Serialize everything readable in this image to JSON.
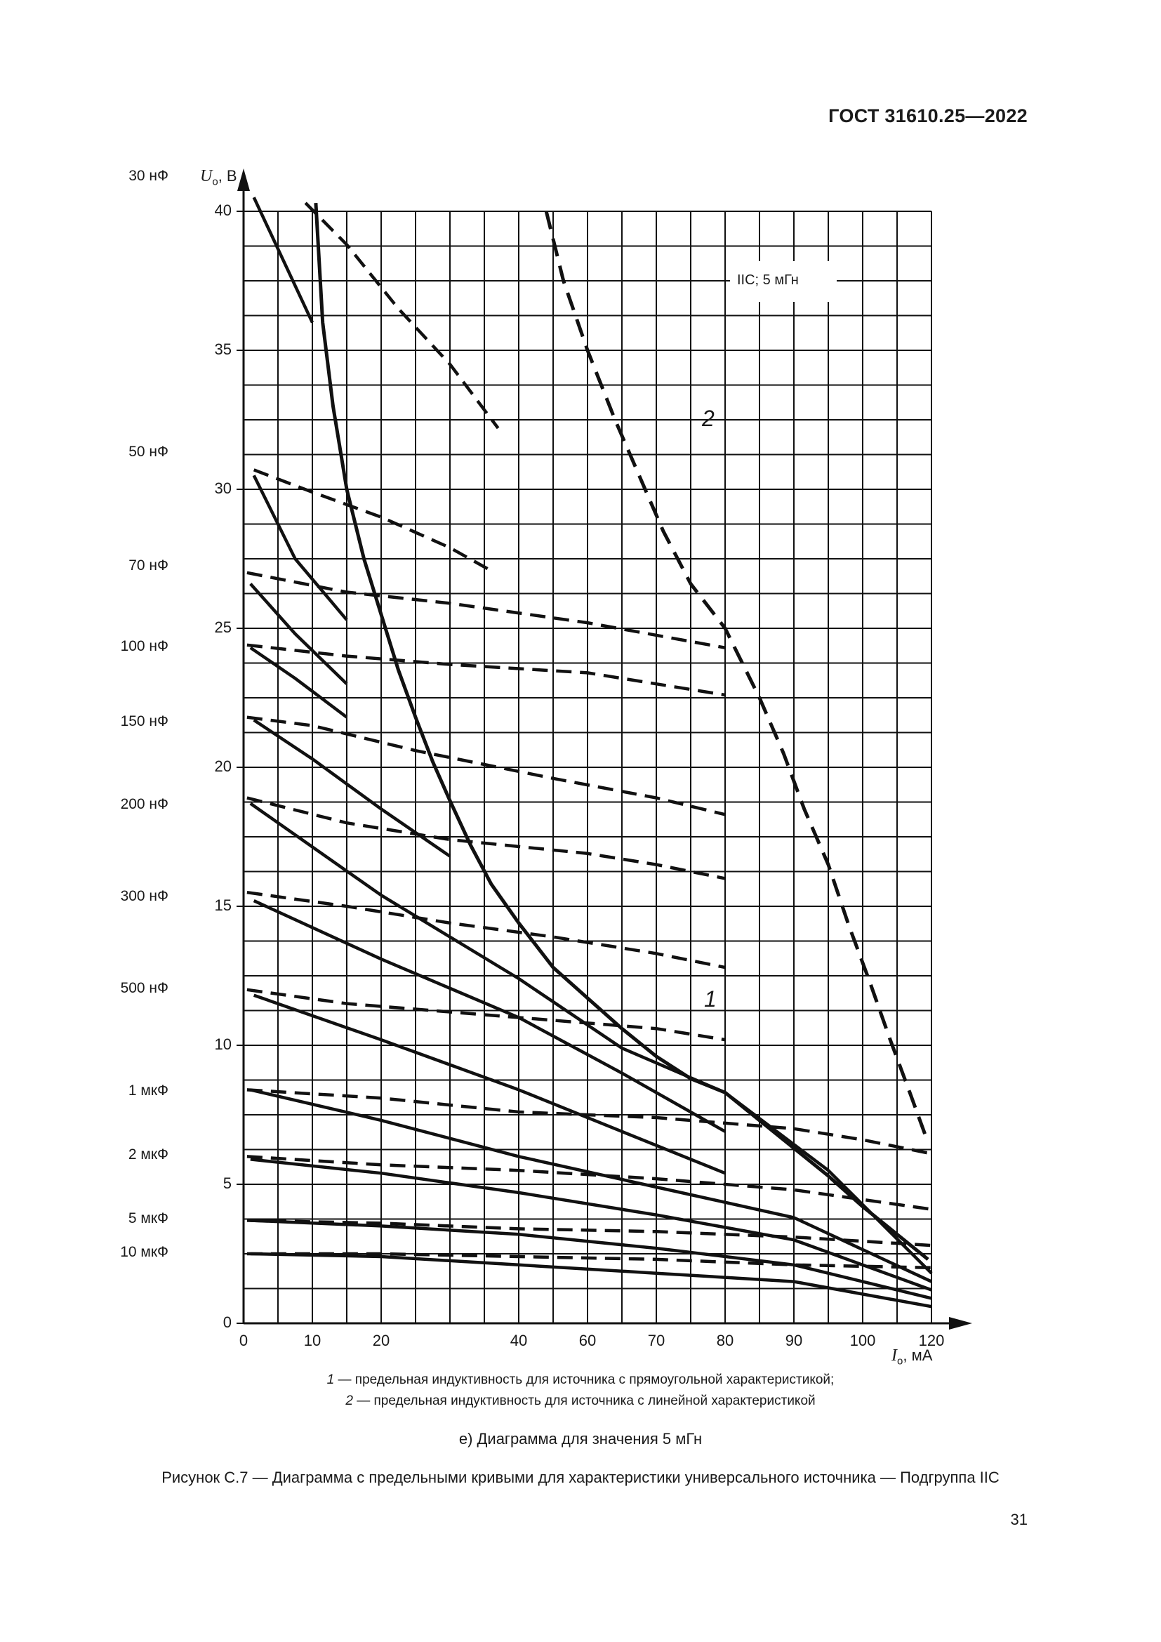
{
  "header": {
    "standard": "ГОСТ 31610.25—2022"
  },
  "figure": {
    "box_label": "IIC; 5 мГн",
    "curve_label_1": "1",
    "curve_label_2": "2",
    "y_axis_label_main": "U",
    "y_axis_label_sub": "о",
    "y_axis_label_unit": ", В",
    "x_axis_label_main": "I",
    "x_axis_label_sub": "о",
    "x_axis_label_unit": ", мА",
    "legend": [
      {
        "num": "1",
        "text": " — предельная индуктивность для источника с прямоугольной характеристикой;"
      },
      {
        "num": "2",
        "text": " — предельная индуктивность для источника с линейной характеристикой"
      }
    ],
    "subcaption": "е) Диаграмма для значения 5 мГн",
    "caption": "Рисунок С.7 — Диаграмма с предельными кривыми для характеристики универсального источника — Подгруппа IIC"
  },
  "page_number": "31",
  "chart_data": {
    "type": "line",
    "title": "IIC; 5 мГн",
    "xlabel": "Iо, мА",
    "ylabel": "Uо, В",
    "xlim": [
      0,
      120
    ],
    "ylim": [
      0,
      40
    ],
    "x_scale_note": "non-uniform: 20 equal grid columns; tick labels at columns 0,2,4,8,10,12,14,16,18,20",
    "x_ticks": [
      {
        "label": "0",
        "col": 0
      },
      {
        "label": "10",
        "col": 2
      },
      {
        "label": "20",
        "col": 4
      },
      {
        "label": "40",
        "col": 8
      },
      {
        "label": "60",
        "col": 10
      },
      {
        "label": "70",
        "col": 12
      },
      {
        "label": "80",
        "col": 14
      },
      {
        "label": "90",
        "col": 16
      },
      {
        "label": "100",
        "col": 18
      },
      {
        "label": "120",
        "col": 20
      }
    ],
    "y_ticks": [
      "0",
      "5",
      "10",
      "15",
      "20",
      "25",
      "30",
      "35",
      "40"
    ],
    "capacitance_labels": [
      {
        "label": "30 нФ",
        "v": 41.2
      },
      {
        "label": "50 нФ",
        "v": 31.3
      },
      {
        "label": "70 нФ",
        "v": 27.2
      },
      {
        "label": "100 нФ",
        "v": 24.3
      },
      {
        "label": "150 нФ",
        "v": 21.6
      },
      {
        "label": "200 нФ",
        "v": 18.6
      },
      {
        "label": "300 нФ",
        "v": 15.3
      },
      {
        "label": "500 нФ",
        "v": 12.0
      },
      {
        "label": "1 мкФ",
        "v": 8.3
      },
      {
        "label": "2 мкФ",
        "v": 6.0
      },
      {
        "label": "5 мкФ",
        "v": 3.7
      },
      {
        "label": "10 мкФ",
        "v": 2.5
      }
    ],
    "grid": true,
    "series": [
      {
        "name": "Curve 1 (rectangular source limit)",
        "style": "solid-bold",
        "points_col_v": [
          [
            2.1,
            40.3
          ],
          [
            2.3,
            36
          ],
          [
            2.6,
            33
          ],
          [
            3,
            30
          ],
          [
            3.5,
            27.5
          ],
          [
            4,
            25.5
          ],
          [
            4.5,
            23.5
          ],
          [
            5,
            21.8
          ],
          [
            5.5,
            20.2
          ],
          [
            6,
            18.8
          ],
          [
            6.6,
            17.2
          ],
          [
            7.2,
            15.8
          ],
          [
            8,
            14.4
          ],
          [
            9,
            12.8
          ],
          [
            10,
            11.7
          ],
          [
            11,
            10.6
          ],
          [
            12,
            9.6
          ],
          [
            13,
            8.8
          ],
          [
            14,
            8.3
          ],
          [
            15,
            7.3
          ],
          [
            16,
            6.3
          ],
          [
            17,
            5.3
          ],
          [
            18,
            4.2
          ],
          [
            19,
            3.2
          ],
          [
            19.9,
            2.3
          ]
        ]
      },
      {
        "name": "Curve 2 (linear source limit)",
        "style": "dashed-bold",
        "points_col_v": [
          [
            8.8,
            40
          ],
          [
            9.3,
            37.5
          ],
          [
            10,
            35
          ],
          [
            10.8,
            32.5
          ],
          [
            11.5,
            30.5
          ],
          [
            12.2,
            28.5
          ],
          [
            13,
            26.6
          ],
          [
            14,
            25
          ],
          [
            15,
            22.5
          ],
          [
            15.7,
            20.5
          ],
          [
            16.3,
            18.5
          ],
          [
            17,
            16.5
          ],
          [
            17.6,
            14.3
          ],
          [
            18.2,
            12.3
          ],
          [
            18.8,
            10.2
          ],
          [
            19.4,
            8.2
          ],
          [
            19.9,
            6.5
          ]
        ]
      },
      {
        "name": "30 нФ solid",
        "style": "solid",
        "points_col_v": [
          [
            0.3,
            40.5
          ],
          [
            2,
            36
          ]
        ]
      },
      {
        "name": "30 нФ dashed",
        "style": "dashed",
        "points_col_v": [
          [
            1.8,
            40.3
          ],
          [
            3,
            38.8
          ],
          [
            4.5,
            36.5
          ],
          [
            6,
            34.5
          ],
          [
            7.4,
            32.2
          ]
        ]
      },
      {
        "name": "50 нФ solid",
        "style": "solid",
        "points_col_v": [
          [
            0.3,
            30.5
          ],
          [
            1.5,
            27.5
          ],
          [
            3,
            25.3
          ]
        ]
      },
      {
        "name": "50 нФ dashed",
        "style": "dashed",
        "points_col_v": [
          [
            0.3,
            30.7
          ],
          [
            2,
            29.9
          ],
          [
            4,
            29
          ],
          [
            6,
            27.9
          ],
          [
            7.3,
            27
          ]
        ]
      },
      {
        "name": "70 нФ solid",
        "style": "solid",
        "points_col_v": [
          [
            0.2,
            26.6
          ],
          [
            1.5,
            24.8
          ],
          [
            3,
            23
          ]
        ]
      },
      {
        "name": "70 нФ dashed",
        "style": "dashed",
        "points_col_v": [
          [
            0.1,
            27
          ],
          [
            3,
            26.3
          ],
          [
            6,
            25.9
          ],
          [
            10,
            25.2
          ],
          [
            14,
            24.3
          ]
        ]
      },
      {
        "name": "100 нФ solid",
        "style": "solid",
        "points_col_v": [
          [
            0.2,
            24.3
          ],
          [
            1.5,
            23.2
          ],
          [
            3,
            21.8
          ]
        ]
      },
      {
        "name": "100 нФ dashed",
        "style": "dashed",
        "points_col_v": [
          [
            0.1,
            24.4
          ],
          [
            3,
            24
          ],
          [
            6,
            23.7
          ],
          [
            10,
            23.4
          ],
          [
            14,
            22.6
          ]
        ]
      },
      {
        "name": "150 нФ solid",
        "style": "solid",
        "points_col_v": [
          [
            0.3,
            21.7
          ],
          [
            2,
            20.3
          ],
          [
            4,
            18.5
          ],
          [
            6,
            16.8
          ]
        ]
      },
      {
        "name": "150 нФ dashed",
        "style": "dashed",
        "points_col_v": [
          [
            0.1,
            21.8
          ],
          [
            2,
            21.5
          ],
          [
            5,
            20.6
          ],
          [
            9,
            19.6
          ],
          [
            12,
            18.9
          ],
          [
            14,
            18.3
          ]
        ]
      },
      {
        "name": "200 нФ solid",
        "style": "solid",
        "points_col_v": [
          [
            0.2,
            18.7
          ],
          [
            4,
            15.4
          ],
          [
            8,
            12.4
          ],
          [
            11,
            9.9
          ],
          [
            14,
            8.3
          ],
          [
            17,
            5.5
          ],
          [
            20,
            1.8
          ]
        ]
      },
      {
        "name": "200 нФ dashed",
        "style": "dashed",
        "points_col_v": [
          [
            0.1,
            18.9
          ],
          [
            3,
            18
          ],
          [
            6,
            17.4
          ],
          [
            10,
            16.9
          ],
          [
            12,
            16.5
          ],
          [
            14,
            16
          ]
        ]
      },
      {
        "name": "300 нФ solid",
        "style": "solid",
        "points_col_v": [
          [
            0.3,
            15.2
          ],
          [
            4,
            13.1
          ],
          [
            8,
            11
          ],
          [
            11,
            9
          ],
          [
            14,
            6.9
          ]
        ]
      },
      {
        "name": "300 нФ dashed",
        "style": "dashed",
        "points_col_v": [
          [
            0.1,
            15.5
          ],
          [
            3,
            15
          ],
          [
            6,
            14.4
          ],
          [
            9,
            13.9
          ],
          [
            12,
            13.3
          ],
          [
            14,
            12.8
          ]
        ]
      },
      {
        "name": "500 нФ solid",
        "style": "solid",
        "points_col_v": [
          [
            0.3,
            11.8
          ],
          [
            4,
            10.2
          ],
          [
            8,
            8.4
          ],
          [
            11,
            6.9
          ],
          [
            14,
            5.4
          ]
        ]
      },
      {
        "name": "500 нФ dashed",
        "style": "dashed",
        "points_col_v": [
          [
            0.1,
            12
          ],
          [
            3,
            11.5
          ],
          [
            6,
            11.2
          ],
          [
            9,
            10.9
          ],
          [
            12,
            10.6
          ],
          [
            14,
            10.2
          ]
        ]
      },
      {
        "name": "1 мкФ solid",
        "style": "solid",
        "points_col_v": [
          [
            0.2,
            8.4
          ],
          [
            4,
            7.3
          ],
          [
            8,
            6
          ],
          [
            12,
            4.9
          ],
          [
            16,
            3.8
          ],
          [
            20,
            1.5
          ]
        ]
      },
      {
        "name": "1 мкФ dashed",
        "style": "dashed",
        "points_col_v": [
          [
            0.1,
            8.4
          ],
          [
            4,
            8.1
          ],
          [
            8,
            7.6
          ],
          [
            12,
            7.4
          ],
          [
            16,
            7
          ],
          [
            18,
            6.6
          ],
          [
            20,
            6.1
          ]
        ]
      },
      {
        "name": "2 мкФ solid",
        "style": "solid",
        "points_col_v": [
          [
            0.2,
            5.9
          ],
          [
            4,
            5.4
          ],
          [
            8,
            4.7
          ],
          [
            12,
            3.9
          ],
          [
            16,
            3
          ],
          [
            20,
            1.2
          ]
        ]
      },
      {
        "name": "2 мкФ dashed",
        "style": "dashed",
        "points_col_v": [
          [
            0.1,
            6
          ],
          [
            4,
            5.7
          ],
          [
            8,
            5.5
          ],
          [
            12,
            5.2
          ],
          [
            16,
            4.8
          ],
          [
            20,
            4.1
          ]
        ]
      },
      {
        "name": "5 мкФ solid",
        "style": "solid",
        "points_col_v": [
          [
            0.2,
            3.7
          ],
          [
            4,
            3.5
          ],
          [
            8,
            3.2
          ],
          [
            12,
            2.7
          ],
          [
            16,
            2.1
          ],
          [
            20,
            0.9
          ]
        ]
      },
      {
        "name": "5 мкФ dashed",
        "style": "dashed",
        "points_col_v": [
          [
            0.1,
            3.7
          ],
          [
            4,
            3.6
          ],
          [
            8,
            3.4
          ],
          [
            12,
            3.3
          ],
          [
            16,
            3.1
          ],
          [
            20,
            2.8
          ]
        ]
      },
      {
        "name": "10 мкФ solid",
        "style": "solid",
        "points_col_v": [
          [
            0.2,
            2.5
          ],
          [
            4,
            2.4
          ],
          [
            8,
            2.1
          ],
          [
            12,
            1.8
          ],
          [
            16,
            1.5
          ],
          [
            20,
            0.6
          ]
        ]
      },
      {
        "name": "10 мкФ dashed",
        "style": "dashed",
        "points_col_v": [
          [
            0.1,
            2.5
          ],
          [
            4,
            2.5
          ],
          [
            8,
            2.4
          ],
          [
            12,
            2.3
          ],
          [
            16,
            2.1
          ],
          [
            20,
            2
          ]
        ]
      }
    ]
  }
}
